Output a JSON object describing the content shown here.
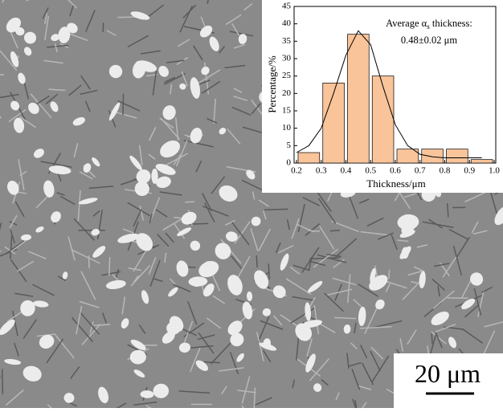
{
  "chart_data": {
    "type": "histogram",
    "xlabel": "Thickness/μm",
    "ylabel": "Percentage/%",
    "annotation": {
      "before": "Average α",
      "sub": "s",
      "after": " thickness:",
      "line2": "0.48±0.02 μm"
    },
    "bins": [
      0.2,
      0.3,
      0.4,
      0.5,
      0.6,
      0.7,
      0.8,
      0.9,
      1.0
    ],
    "values": [
      3,
      23,
      37,
      25,
      4,
      4,
      4,
      1
    ],
    "color": "#f9c49a",
    "fit": {
      "x": [
        0.2,
        0.25,
        0.3,
        0.35,
        0.4,
        0.45,
        0.5,
        0.55,
        0.6,
        0.65,
        0.7,
        0.75,
        0.8,
        0.85,
        0.9,
        0.95
      ],
      "values": [
        3,
        5,
        10,
        20,
        31,
        38,
        34,
        22,
        11,
        5,
        2.5,
        1.8,
        1.5,
        1.5,
        1.5,
        1.5
      ],
      "color": "#000000"
    },
    "xlim": [
      0.2,
      1.0
    ],
    "ylim": [
      0,
      45
    ],
    "xticks": [
      0.2,
      0.3,
      0.4,
      0.5,
      0.6,
      0.7,
      0.8,
      0.9,
      {
        "value": 1,
        "label": "1.0"
      }
    ],
    "yticks": [
      0,
      5,
      10,
      15,
      20,
      25,
      30,
      35,
      40,
      45
    ]
  },
  "scale_bar": {
    "label": "20 μm"
  }
}
